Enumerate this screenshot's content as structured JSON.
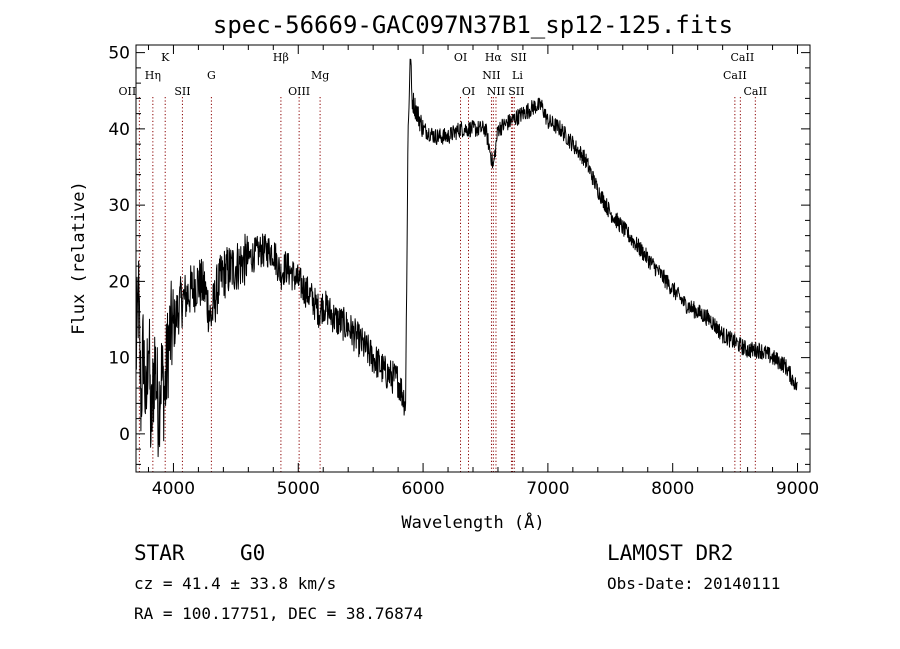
{
  "chart_data": {
    "type": "line",
    "title": "spec-56669-GAC097N37B1_sp12-125.fits",
    "xlabel": "Wavelength (Å)",
    "ylabel": "Flux (relative)",
    "xlim": [
      3700,
      9100
    ],
    "ylim": [
      -5,
      51
    ],
    "xticks": [
      4000,
      5000,
      6000,
      7000,
      8000,
      9000
    ],
    "yticks": [
      0,
      10,
      20,
      30,
      40,
      50
    ],
    "grid": false,
    "line_color": "#000000",
    "marker_color": "#8b0000",
    "spectrum_anchors": [
      [
        3700,
        10
      ],
      [
        3720,
        18
      ],
      [
        3740,
        4
      ],
      [
        3760,
        12
      ],
      [
        3780,
        2
      ],
      [
        3800,
        14
      ],
      [
        3820,
        0
      ],
      [
        3850,
        10
      ],
      [
        3880,
        3
      ],
      [
        3900,
        8
      ],
      [
        3930,
        5
      ],
      [
        3960,
        12
      ],
      [
        4000,
        14
      ],
      [
        4050,
        17
      ],
      [
        4100,
        18
      ],
      [
        4150,
        19
      ],
      [
        4200,
        20
      ],
      [
        4250,
        19
      ],
      [
        4300,
        15
      ],
      [
        4350,
        19
      ],
      [
        4400,
        21
      ],
      [
        4500,
        22
      ],
      [
        4600,
        23
      ],
      [
        4700,
        24
      ],
      [
        4800,
        24
      ],
      [
        4860,
        21
      ],
      [
        4900,
        22
      ],
      [
        5000,
        20
      ],
      [
        5100,
        18
      ],
      [
        5170,
        16
      ],
      [
        5200,
        17
      ],
      [
        5300,
        15
      ],
      [
        5400,
        14
      ],
      [
        5500,
        12
      ],
      [
        5600,
        10
      ],
      [
        5700,
        8
      ],
      [
        5800,
        7
      ],
      [
        5860,
        4
      ],
      [
        5880,
        40
      ],
      [
        5900,
        50
      ],
      [
        5910,
        44
      ],
      [
        6000,
        40
      ],
      [
        6100,
        39
      ],
      [
        6200,
        39
      ],
      [
        6300,
        40
      ],
      [
        6400,
        40
      ],
      [
        6500,
        40
      ],
      [
        6563,
        35
      ],
      [
        6600,
        40
      ],
      [
        6700,
        41
      ],
      [
        6800,
        42
      ],
      [
        6900,
        43
      ],
      [
        6950,
        43
      ],
      [
        7000,
        41
      ],
      [
        7100,
        40
      ],
      [
        7200,
        38
      ],
      [
        7300,
        36
      ],
      [
        7400,
        32
      ],
      [
        7500,
        29
      ],
      [
        7600,
        27
      ],
      [
        7700,
        25
      ],
      [
        7800,
        23
      ],
      [
        7900,
        21
      ],
      [
        8000,
        19
      ],
      [
        8100,
        17
      ],
      [
        8200,
        16
      ],
      [
        8300,
        15
      ],
      [
        8400,
        13
      ],
      [
        8500,
        12
      ],
      [
        8600,
        11
      ],
      [
        8700,
        11
      ],
      [
        8800,
        10
      ],
      [
        8900,
        9
      ],
      [
        9000,
        6
      ]
    ],
    "line_markers": [
      {
        "x": 3727,
        "label": "OII",
        "row": 3,
        "dx": -12
      },
      {
        "x": 3835,
        "label": "Hη",
        "row": 2,
        "dx": 0
      },
      {
        "x": 3934,
        "label": "K",
        "row": 1,
        "dx": 0
      },
      {
        "x": 4072,
        "label": "SII",
        "row": 3,
        "dx": 0
      },
      {
        "x": 4304,
        "label": "G",
        "row": 2,
        "dx": 0
      },
      {
        "x": 4861,
        "label": "Hβ",
        "row": 1,
        "dx": 0
      },
      {
        "x": 5007,
        "label": "OIII",
        "row": 3,
        "dx": 0
      },
      {
        "x": 5175,
        "label": "Mg",
        "row": 2,
        "dx": 0
      },
      {
        "x": 6300,
        "label": "OI",
        "row": 1,
        "dx": 0
      },
      {
        "x": 6364,
        "label": "OI",
        "row": 3,
        "dx": 0
      },
      {
        "x": 6548,
        "label": "NII",
        "row": 2,
        "dx": 0
      },
      {
        "x": 6563,
        "label": "Hα",
        "row": 1,
        "dx": 0
      },
      {
        "x": 6584,
        "label": "NII",
        "row": 3,
        "dx": 0
      },
      {
        "x": 6708,
        "label": "Li",
        "row": 2,
        "dx": 6
      },
      {
        "x": 6717,
        "label": "SII",
        "row": 1,
        "dx": 6
      },
      {
        "x": 6731,
        "label": "SII",
        "row": 3,
        "dx": 2
      },
      {
        "x": 8498,
        "label": "CaII",
        "row": 2,
        "dx": 0
      },
      {
        "x": 8542,
        "label": "CaII",
        "row": 1,
        "dx": 2
      },
      {
        "x": 8662,
        "label": "CaII",
        "row": 3,
        "dx": 0
      }
    ]
  },
  "info": {
    "class": "STAR",
    "subclass": "G0",
    "cz": "cz = 41.4 ± 33.8 km/s",
    "coords": "RA = 100.17751, DEC =  38.76874",
    "survey": "LAMOST DR2",
    "obs_date": "Obs-Date: 20140111"
  }
}
